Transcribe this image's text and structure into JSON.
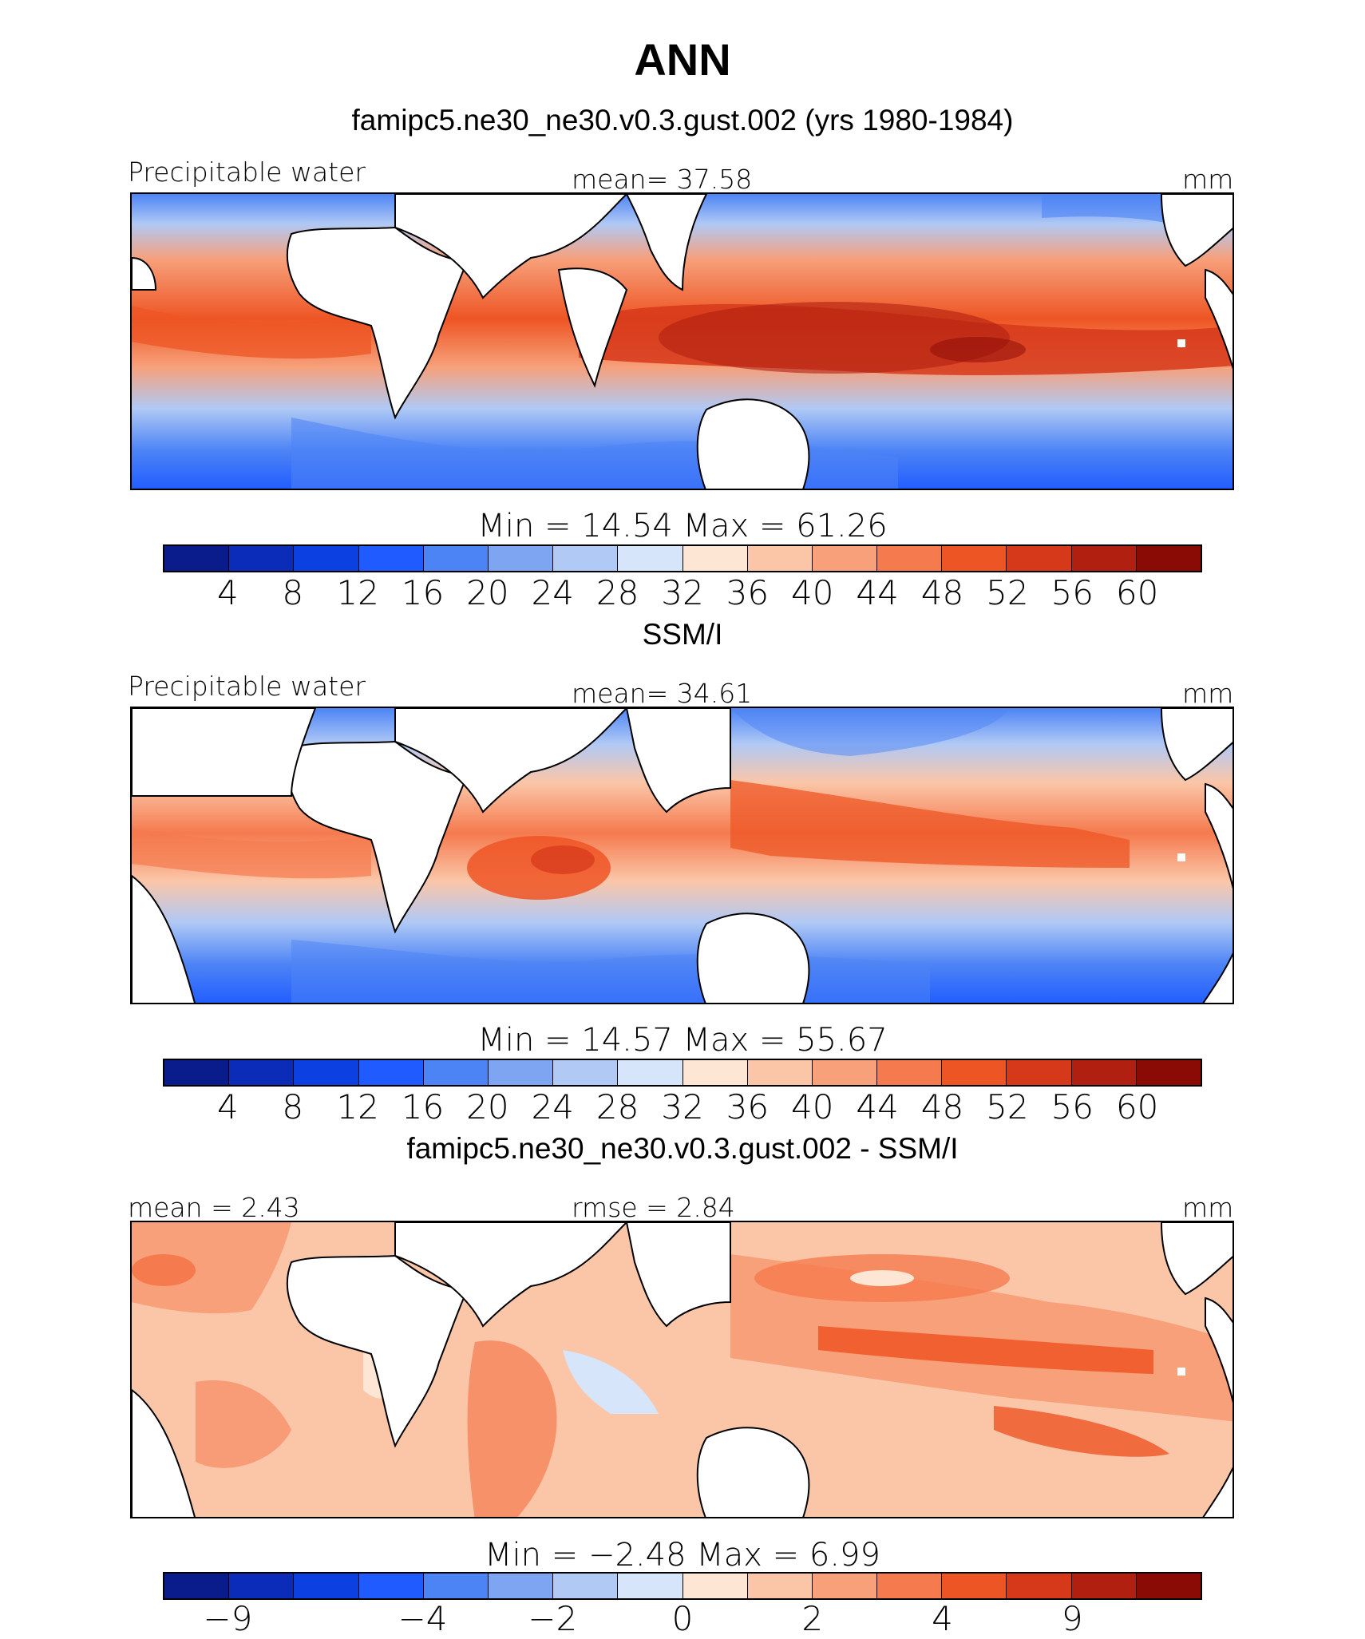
{
  "title": "ANN",
  "palette": [
    "#0a1b8c",
    "#0b2cb8",
    "#0c40e0",
    "#1f5bff",
    "#4d84f5",
    "#7ea5f2",
    "#b0c9f5",
    "#d7e5fb",
    "#fde6d4",
    "#fbc6a8",
    "#f7a07a",
    "#f57a4e",
    "#ee5524",
    "#d6381a",
    "#b01f10",
    "#8a0a05"
  ],
  "panels": [
    {
      "title": "famipc5.ne30_ne30.v0.3.gust.002 (yrs 1980-1984)",
      "left_label": "Precipitable water",
      "center_label": "mean=  37.58",
      "right_label": "mm",
      "stats": "Min =   14.54  Max =   61.26",
      "ticks": [
        "4",
        "8",
        "12",
        "16",
        "20",
        "24",
        "28",
        "32",
        "36",
        "40",
        "44",
        "48",
        "52",
        "56",
        "60"
      ]
    },
    {
      "title": "SSM/I",
      "left_label": "Precipitable water",
      "center_label": "mean=  34.61",
      "right_label": "mm",
      "stats": "Min =   14.57  Max =   55.67",
      "ticks": [
        "4",
        "8",
        "12",
        "16",
        "20",
        "24",
        "28",
        "32",
        "36",
        "40",
        "44",
        "48",
        "52",
        "56",
        "60"
      ]
    },
    {
      "title": "famipc5.ne30_ne30.v0.3.gust.002 - SSM/I",
      "left_label": "mean =   2.43",
      "center_label": "rmse =   2.84",
      "right_label": "mm",
      "stats": "Min =  −2.48  Max =     6.99",
      "ticks": [
        "−9",
        "−4",
        "−2",
        "0",
        "2",
        "4",
        "9"
      ]
    }
  ]
}
